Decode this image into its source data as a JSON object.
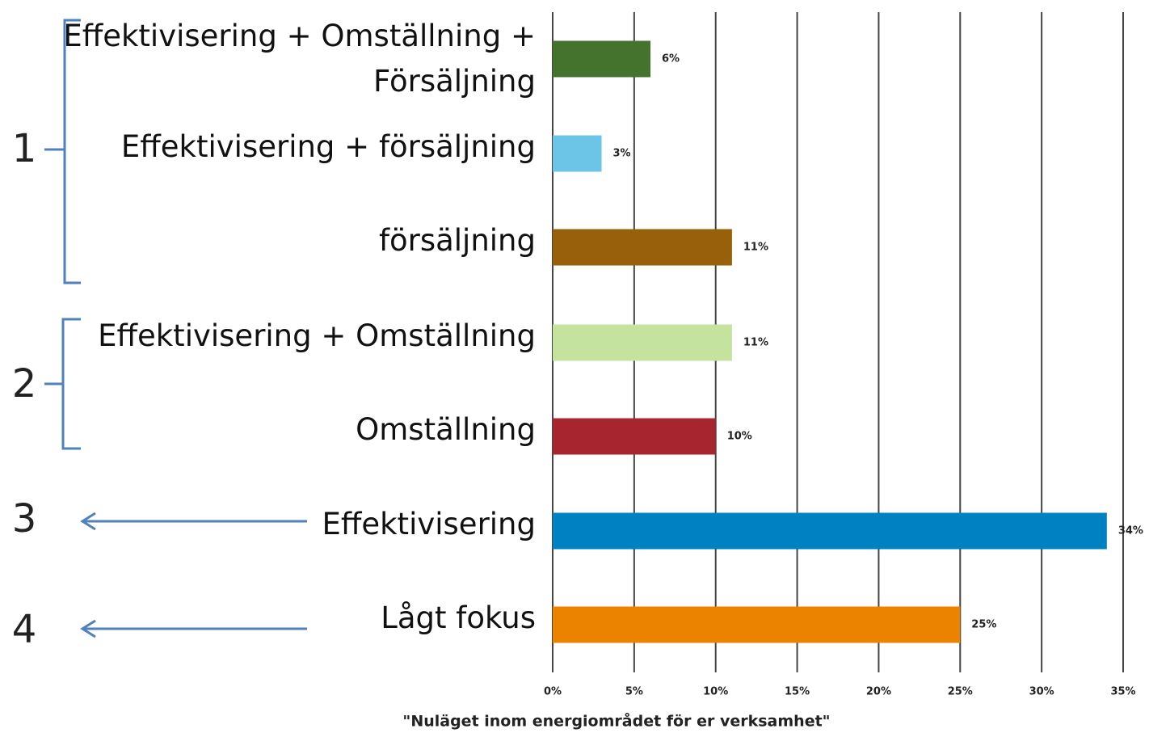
{
  "chart_data": {
    "type": "bar",
    "orientation": "horizontal",
    "categories": [
      "Effektivisering + Omställning + Försäljning",
      "Effektivisering + försäljning",
      "försäljning",
      "Effektivisering + Omställning",
      "Omställning",
      "Effektivisering",
      "Lågt fokus"
    ],
    "values": [
      6,
      3,
      11,
      11,
      10,
      34,
      25
    ],
    "value_labels": [
      "6%",
      "3%",
      "11%",
      "11%",
      "10%",
      "34%",
      "25%"
    ],
    "colors": [
      "#43732d",
      "#6cc4e6",
      "#98600a",
      "#c4e39f",
      "#a6252e",
      "#0081c2",
      "#ec8300"
    ],
    "xlabel": "\"Nuläget inom energiområdet för er verksamhet\"",
    "xlim": [
      0,
      35
    ],
    "xticks": [
      {
        "value": 0,
        "label": "0%"
      },
      {
        "value": 5,
        "label": "5%"
      },
      {
        "value": 10,
        "label": "10%"
      },
      {
        "value": 15,
        "label": "15%"
      },
      {
        "value": 20,
        "label": "20%"
      },
      {
        "value": 25,
        "label": "25%"
      },
      {
        "value": 30,
        "label": "30%"
      },
      {
        "value": 35,
        "label": "35%"
      }
    ],
    "grid": true,
    "annotations": [
      "1",
      "2",
      "3",
      "4"
    ]
  }
}
